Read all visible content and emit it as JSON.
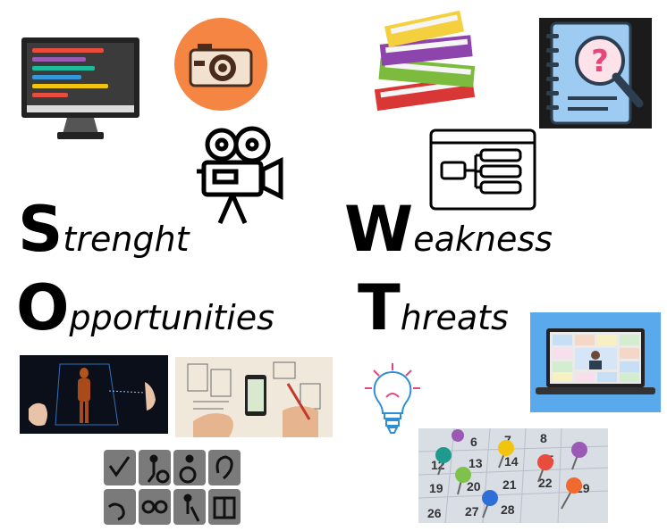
{
  "swot": {
    "strength": {
      "letter": "S",
      "rest": "trenght"
    },
    "weakness": {
      "letter": "W",
      "rest": "eakness"
    },
    "opportunities": {
      "letter": "O",
      "rest": "pportunities"
    },
    "threats": {
      "letter": "T",
      "rest": "hreats"
    }
  },
  "calendar": {
    "numbers": [
      "6",
      "7",
      "8",
      "12",
      "13",
      "14",
      "15",
      "19",
      "20",
      "21",
      "22",
      "26",
      "27",
      "28",
      "29"
    ]
  },
  "icons": {
    "monitor": "code-monitor-icon",
    "camera": "photo-camera-icon",
    "books": "book-stack-icon",
    "notebook": "notebook-search-icon",
    "video_camera": "video-camera-icon",
    "diagram": "flowchart-window-icon",
    "video_call": "video-conference-icon",
    "bulb": "lightbulb-icon",
    "accessibility": "accessibility-icons-grid"
  },
  "colors": {
    "camera_bg": "#f58542",
    "books": [
      "#f4d03f",
      "#8e44ad",
      "#7cbb3e",
      "#d93636"
    ],
    "notebook_bg": "#9ecbf2",
    "video_call_bg": "#5aa9ec"
  }
}
